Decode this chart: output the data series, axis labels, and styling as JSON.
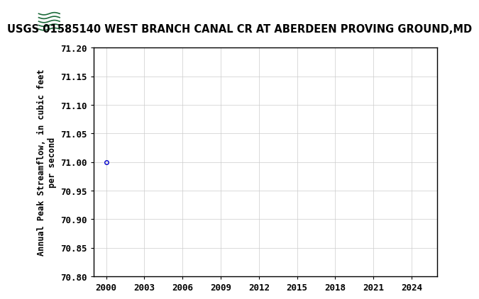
{
  "title": "USGS 01585140 WEST BRANCH CANAL CR AT ABERDEEN PROVING GROUND,MD",
  "ylabel_line1": "Annual Peak Streamflow, in cubic feet",
  "ylabel_line2": "per second",
  "data_x": [
    2000
  ],
  "data_y": [
    71.0
  ],
  "marker": "o",
  "marker_color": "#0000cc",
  "marker_size": 4,
  "xlim": [
    1999,
    2026
  ],
  "ylim": [
    70.8,
    71.2
  ],
  "xticks": [
    2000,
    2003,
    2006,
    2009,
    2012,
    2015,
    2018,
    2021,
    2024
  ],
  "yticks": [
    70.8,
    70.85,
    70.9,
    70.95,
    71.0,
    71.05,
    71.1,
    71.15,
    71.2
  ],
  "grid_color": "#cccccc",
  "grid_linewidth": 0.5,
  "bg_color": "#ffffff",
  "header_color": "#1c6b3a",
  "title_fontsize": 10.5,
  "tick_fontsize": 9,
  "ylabel_fontsize": 8.5,
  "header_text": "USGS",
  "header_text_color": "#ffffff",
  "header_fontsize": 16
}
